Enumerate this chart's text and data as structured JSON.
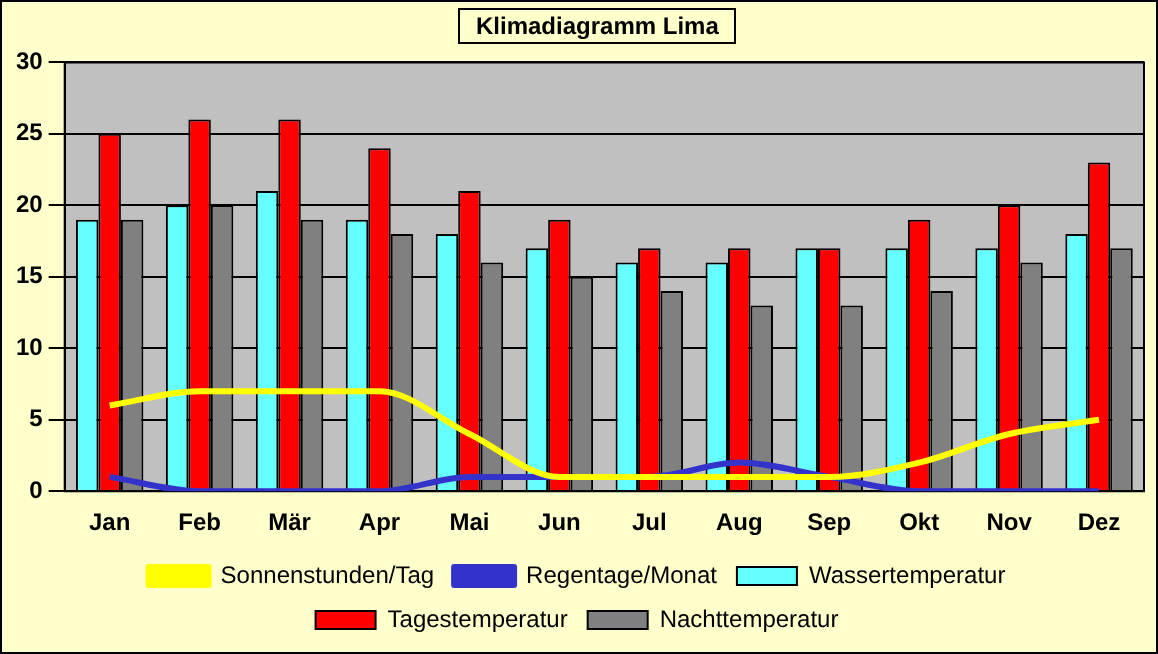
{
  "chart_data": {
    "type": "bar",
    "title": "Klimadiagramm Lima",
    "categories": [
      "Jan",
      "Feb",
      "Mär",
      "Apr",
      "Mai",
      "Jun",
      "Jul",
      "Aug",
      "Sep",
      "Okt",
      "Nov",
      "Dez"
    ],
    "series": [
      {
        "name": "Wassertemperatur",
        "color": "#66ffff",
        "values": [
          19,
          20,
          21,
          19,
          18,
          17,
          16,
          16,
          17,
          17,
          17,
          18
        ]
      },
      {
        "name": "Tagestemperatur",
        "color": "#ff0000",
        "values": [
          25,
          26,
          26,
          24,
          21,
          19,
          17,
          17,
          17,
          19,
          20,
          23
        ]
      },
      {
        "name": "Nachttemperatur",
        "color": "#808080",
        "values": [
          19,
          20,
          19,
          18,
          16,
          15,
          14,
          13,
          13,
          14,
          16,
          17
        ]
      },
      {
        "name": "Sonnenstunden/Tag",
        "type": "line",
        "color": "#ffff00",
        "values": [
          6,
          7,
          7,
          7,
          4,
          1,
          1,
          1,
          1,
          2,
          4,
          5
        ]
      },
      {
        "name": "Regentage/Monat",
        "type": "line",
        "color": "#3333cc",
        "values": [
          1,
          0,
          0,
          0,
          1,
          1,
          1,
          2,
          1,
          0,
          0,
          0
        ]
      }
    ],
    "ylim": [
      0,
      30
    ],
    "yticks": [
      0,
      5,
      10,
      15,
      20,
      25,
      30
    ],
    "grid": "y",
    "legend": "bottom",
    "marker": "none"
  }
}
